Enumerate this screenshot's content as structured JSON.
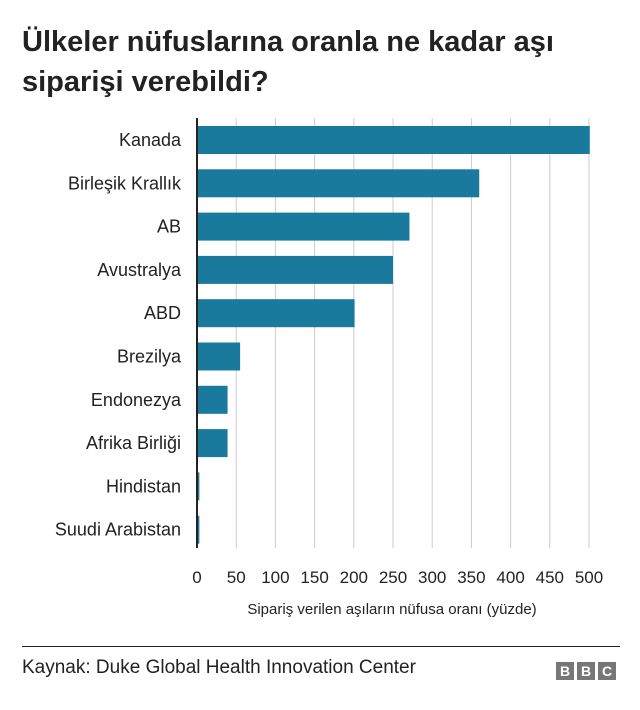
{
  "title": "Ülkeler nüfuslarına oranla ne kadar aşı siparişi verebildi?",
  "source": "Kaynak: Duke Global Health Innovation Center",
  "logo": "BBC",
  "colors": {
    "bar": "#1a7a9e",
    "grid": "#cccccc",
    "text": "#222222",
    "axis": "#222222"
  },
  "chart_data": {
    "type": "bar",
    "orientation": "horizontal",
    "categories": [
      "Kanada",
      "Birleşik Krallık",
      "AB",
      "Avustralya",
      "ABD",
      "Brezilya",
      "Endonezya",
      "Afrika Birliği",
      "Hindistan",
      "Suudi Arabistan"
    ],
    "values": [
      501,
      360,
      271,
      250,
      201,
      55,
      39,
      39,
      3,
      3
    ],
    "xlabel": "Sipariş verilen aşıların nüfusa oranı (yüzde)",
    "ylabel": "",
    "xlim": [
      0,
      500
    ],
    "xticks": [
      0,
      50,
      100,
      150,
      200,
      250,
      300,
      350,
      400,
      450,
      500
    ],
    "grid": true
  }
}
